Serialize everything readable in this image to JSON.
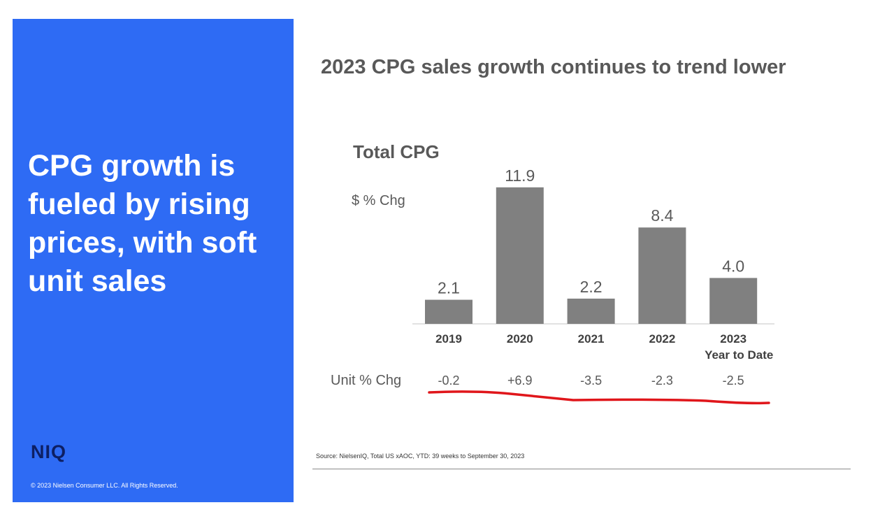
{
  "left_panel": {
    "headline": "CPG growth is fueled by rising prices, with soft unit sales",
    "logo_text": "NIQ",
    "copyright": "© 2023 Nielsen Consumer LLC. All Rights Reserved.",
    "background_color": "#2e6bf4"
  },
  "title": "2023 CPG sales growth continues to trend lower",
  "source": "Source: NielsenIQ, Total US xAOC,  YTD: 39 weeks to September 30, 2023",
  "chart_data": {
    "type": "bar",
    "title": "Total CPG",
    "ylabel": "$ % Chg",
    "categories": [
      "2019",
      "2020",
      "2021",
      "2022",
      "2023"
    ],
    "category_sublabels": [
      "",
      "",
      "",
      "",
      "Year to Date"
    ],
    "values": [
      2.1,
      11.9,
      2.2,
      8.4,
      4.0
    ],
    "value_labels": [
      "2.1",
      "11.9",
      "2.2",
      "8.4",
      "4.0"
    ],
    "ylim": [
      0,
      13
    ],
    "grid": false,
    "bar_color": "#808080",
    "unit_row": {
      "label": "Unit % Chg",
      "values": [
        -0.2,
        6.9,
        -3.5,
        -2.3,
        -2.5
      ],
      "value_labels": [
        "-0.2",
        "+6.9",
        "-3.5",
        "-2.3",
        "-2.5"
      ],
      "underline_color": "#e0161b"
    }
  }
}
